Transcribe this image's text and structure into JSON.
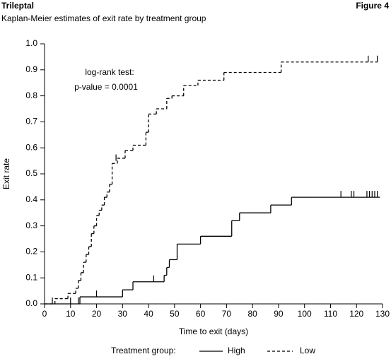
{
  "chart_data": {
    "type": "step",
    "title": "Trileptal",
    "figure_label": "Figure 4",
    "subtitle": "Kaplan-Meier estimates of exit rate by treatment group",
    "x_label": "Time to exit (days)",
    "y_label": "Exit rate",
    "annotation": [
      "log-rank test:",
      "p-value = 0.0001"
    ],
    "legend_title": "Treatment group:",
    "xlim": [
      0,
      130
    ],
    "ylim": [
      0,
      1
    ],
    "xticks": [
      0,
      10,
      20,
      30,
      40,
      50,
      60,
      70,
      80,
      90,
      100,
      110,
      120,
      130
    ],
    "yticks": [
      {
        "value": 0,
        "label": "0.0"
      },
      0.1,
      0.2,
      0.3,
      0.4,
      0.5,
      0.6,
      0.7,
      0.8,
      0.9,
      {
        "value": 1,
        "label": "1.0"
      }
    ],
    "series": [
      {
        "name": "High",
        "color": "#000000",
        "dash": false,
        "x": [
          0,
          13.6,
          30,
          34,
          46,
          47,
          48,
          51,
          60,
          72,
          75,
          87,
          95,
          105
        ],
        "values": [
          0,
          0.027,
          0.054,
          0.085,
          0.11,
          0.14,
          0.17,
          0.23,
          0.26,
          0.32,
          0.35,
          0.38,
          0.41,
          0.41
        ],
        "end": 129,
        "censored_x": [
          3,
          10,
          13,
          20,
          42,
          114,
          118,
          119,
          124,
          125,
          126,
          127,
          128
        ],
        "censored_y": [
          0,
          0,
          0,
          0.027,
          0.085,
          0.41,
          0.41,
          0.41,
          0.41,
          0.41,
          0.41,
          0.41,
          0.41
        ]
      },
      {
        "name": "Low",
        "color": "#000000",
        "dash": true,
        "x": [
          0,
          4,
          9,
          12,
          13,
          14,
          15,
          16,
          17,
          18,
          19,
          20,
          21,
          22,
          23,
          24,
          25,
          26,
          28,
          31,
          34,
          39,
          40,
          43,
          47,
          49,
          53.5,
          59,
          69,
          91
        ],
        "values": [
          0,
          0.02,
          0.04,
          0.06,
          0.09,
          0.12,
          0.16,
          0.19,
          0.22,
          0.27,
          0.3,
          0.34,
          0.36,
          0.38,
          0.41,
          0.43,
          0.46,
          0.54,
          0.56,
          0.59,
          0.61,
          0.66,
          0.73,
          0.75,
          0.79,
          0.8,
          0.84,
          0.86,
          0.89,
          0.93
        ],
        "end": 128,
        "censored_x": [
          27.5,
          124.5,
          128
        ],
        "censored_y": [
          0.55,
          0.93,
          0.93
        ]
      }
    ]
  }
}
